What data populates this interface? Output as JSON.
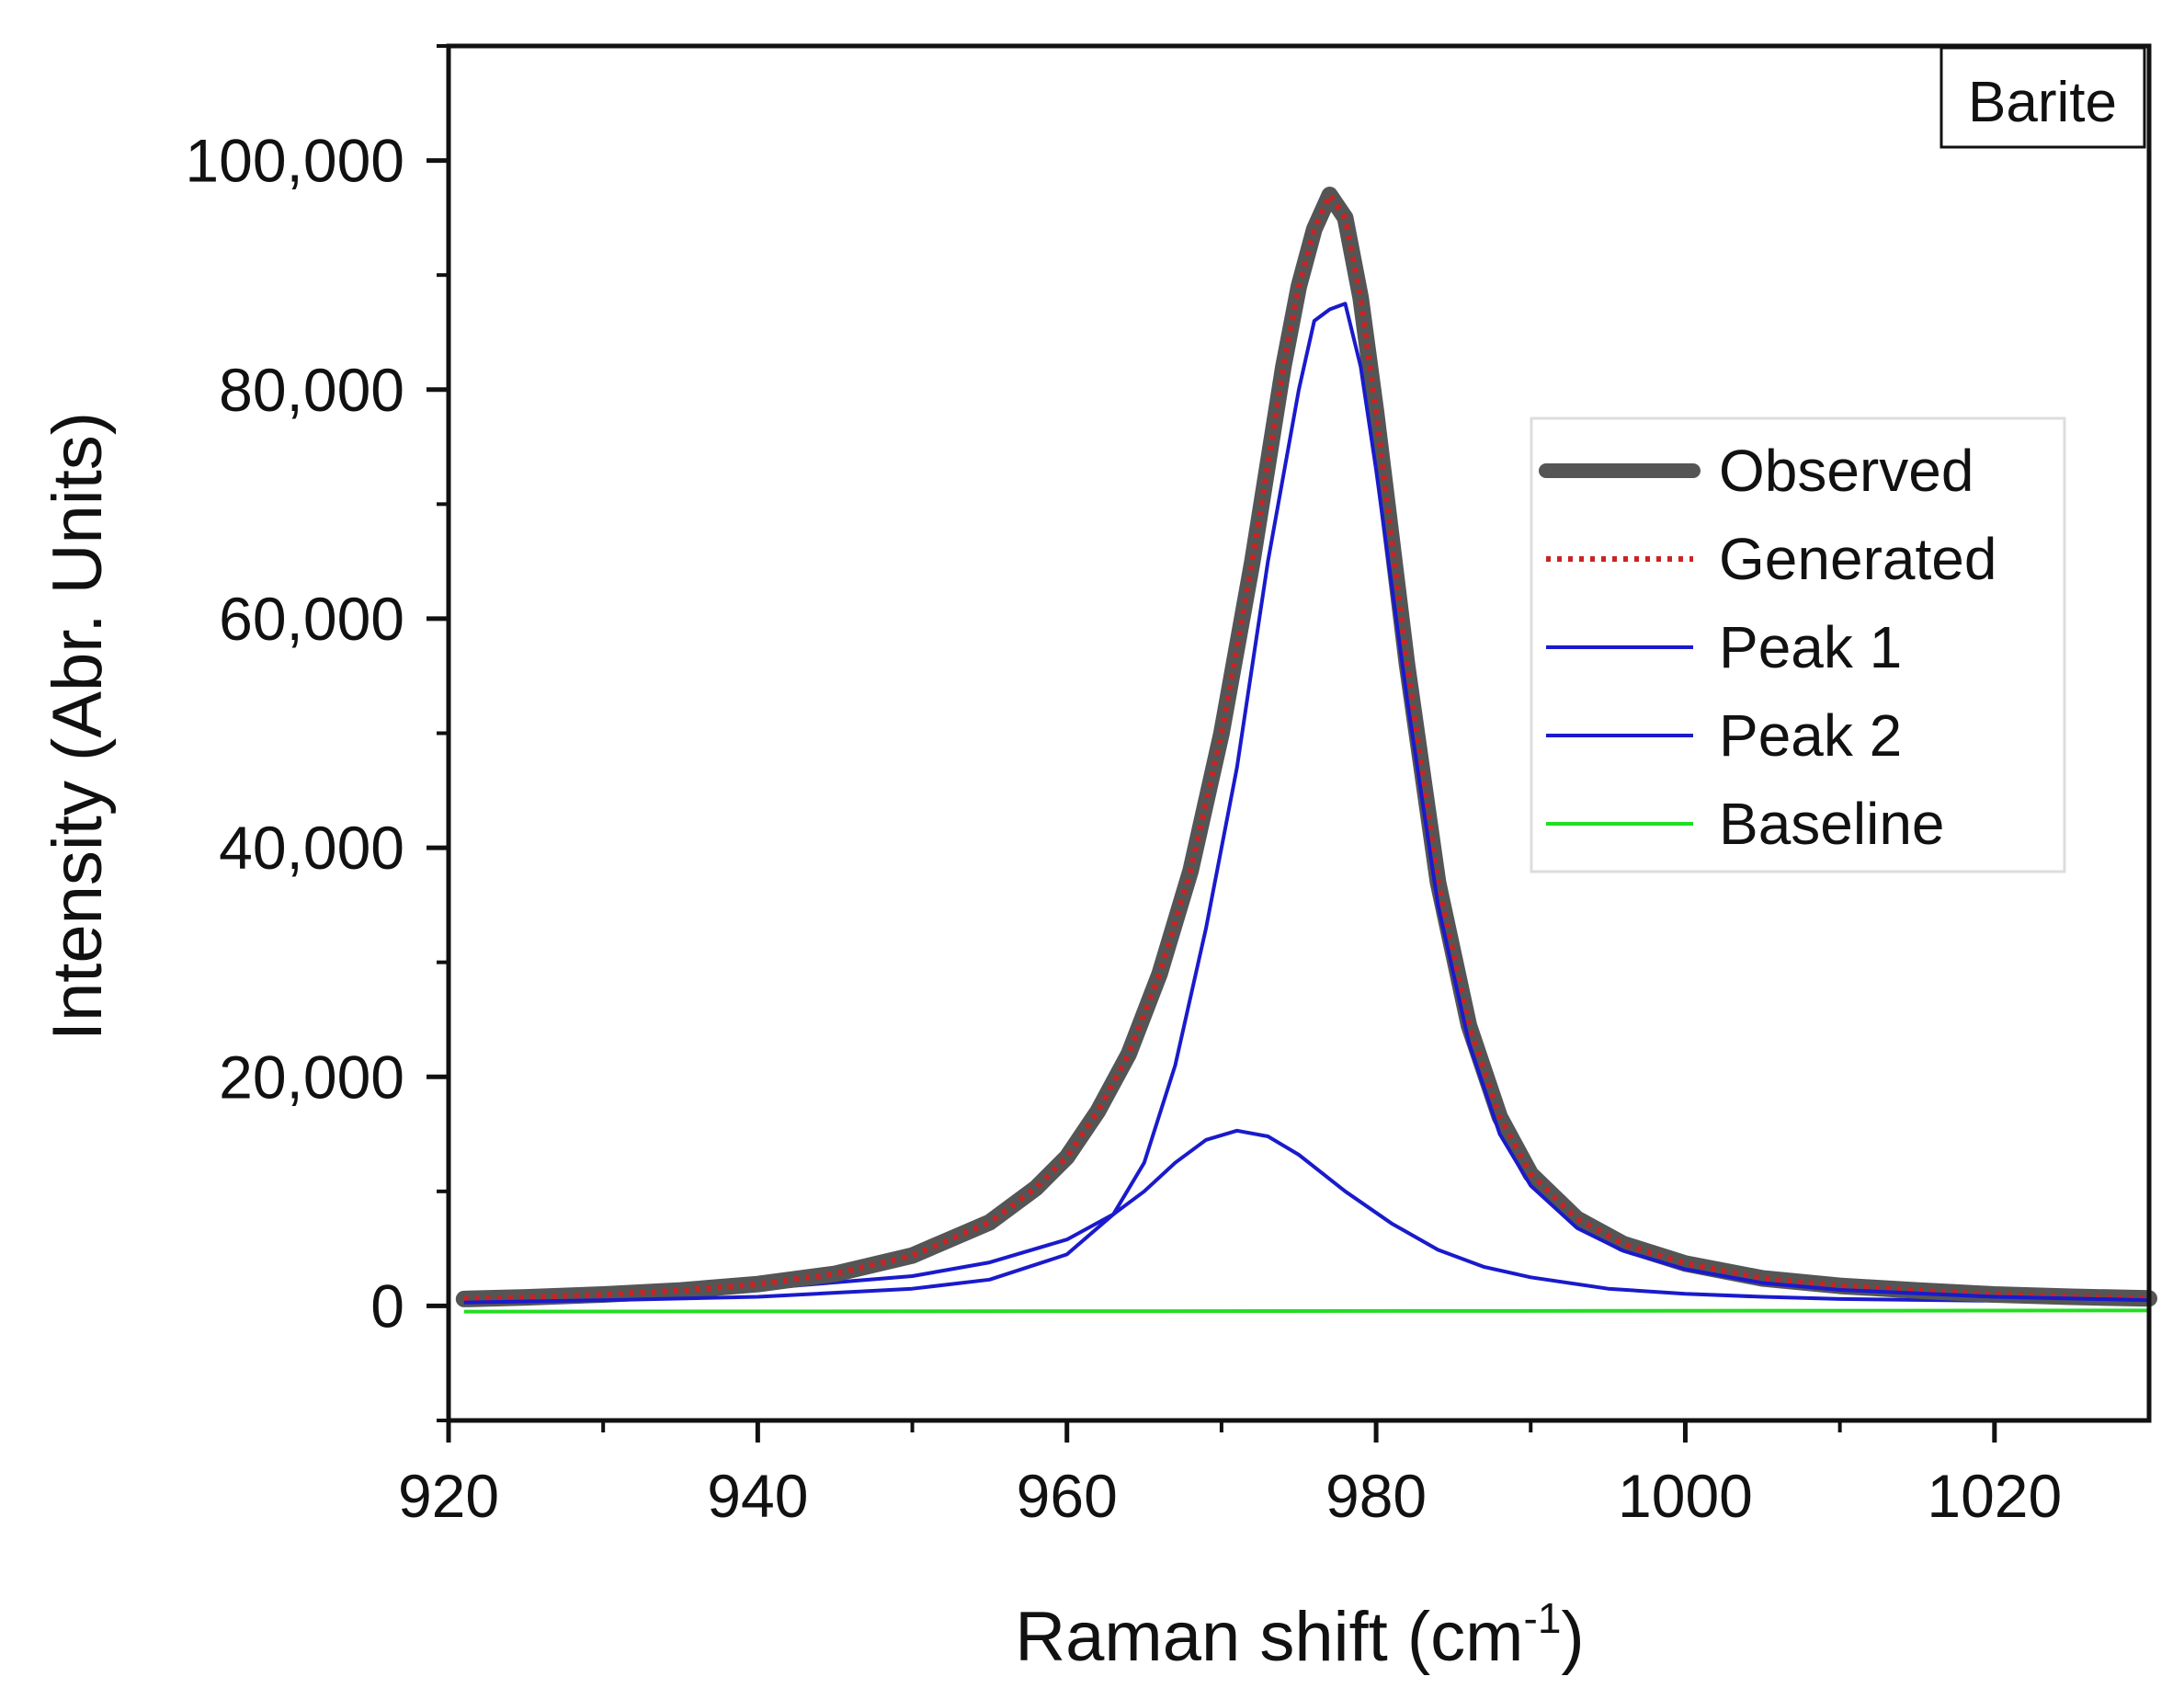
{
  "chart_data": {
    "type": "line",
    "title": "",
    "sample_label": "Barite",
    "xlabel_main": "Raman shift (cm",
    "xlabel_sup": "-1",
    "xlabel_close": ")",
    "ylabel": "Intensity (Abr. Units)",
    "xlim": [
      920,
      1030
    ],
    "ylim": [
      -10000,
      110000
    ],
    "x_ticks": [
      920,
      940,
      960,
      980,
      1000,
      1020
    ],
    "x_tick_labels": [
      "920",
      "940",
      "960",
      "980",
      "1000",
      "1020"
    ],
    "y_ticks": [
      0,
      20000,
      40000,
      60000,
      80000,
      100000
    ],
    "y_tick_labels": [
      "0",
      "20,000",
      "40,000",
      "60,000",
      "80,000",
      "100,000"
    ],
    "grid": false,
    "legend_position": "right",
    "series": [
      {
        "name": "Observed",
        "color": "#555555",
        "style": "thick",
        "x": [
          921,
          925,
          930,
          935,
          940,
          945,
          950,
          955,
          958,
          960,
          962,
          964,
          966,
          968,
          970,
          972,
          974,
          975,
          976,
          977,
          978,
          979,
          980,
          982,
          984,
          986,
          988,
          990,
          993,
          996,
          1000,
          1005,
          1010,
          1015,
          1020,
          1025,
          1030
        ],
        "y": [
          600,
          750,
          1000,
          1350,
          1900,
          2800,
          4400,
          7300,
          10300,
          13000,
          17000,
          22000,
          29000,
          38000,
          50000,
          65000,
          82000,
          89000,
          94000,
          97000,
          95000,
          88000,
          78000,
          56000,
          37000,
          24500,
          16500,
          11500,
          7600,
          5400,
          3700,
          2400,
          1750,
          1350,
          1000,
          800,
          650
        ]
      },
      {
        "name": "Generated",
        "color": "#cc2222",
        "style": "dotted",
        "x": [
          921,
          925,
          930,
          935,
          940,
          945,
          950,
          955,
          958,
          960,
          962,
          964,
          966,
          968,
          970,
          972,
          974,
          975,
          976,
          977,
          978,
          979,
          980,
          982,
          984,
          986,
          988,
          990,
          993,
          996,
          1000,
          1005,
          1010,
          1015,
          1020,
          1025,
          1030
        ],
        "y": [
          600,
          750,
          1000,
          1350,
          1900,
          2800,
          4400,
          7300,
          10300,
          13000,
          17000,
          22000,
          29000,
          38000,
          50000,
          65000,
          82000,
          89000,
          94000,
          97000,
          95000,
          88000,
          78000,
          56000,
          37000,
          24500,
          16500,
          11500,
          7600,
          5400,
          3700,
          2400,
          1750,
          1350,
          1000,
          800,
          650
        ]
      },
      {
        "name": "Peak 1",
        "color": "#1a1acc",
        "style": "solid",
        "x": [
          921,
          930,
          940,
          950,
          955,
          960,
          963,
          965,
          967,
          969,
          971,
          973,
          975,
          976,
          977,
          978,
          979,
          980,
          982,
          984,
          986,
          988,
          990,
          993,
          996,
          1000,
          1005,
          1010,
          1020,
          1030
        ],
        "y": [
          300,
          500,
          800,
          1500,
          2300,
          4500,
          8000,
          12500,
          21000,
          33000,
          47000,
          65000,
          80000,
          86000,
          87000,
          87500,
          82000,
          73000,
          53000,
          35000,
          23000,
          15000,
          10500,
          6800,
          4800,
          3200,
          2000,
          1400,
          800,
          500
        ]
      },
      {
        "name": "Peak 2",
        "color": "#1a1acc",
        "style": "solid",
        "x": [
          921,
          930,
          940,
          950,
          955,
          960,
          963,
          965,
          967,
          969,
          971,
          973,
          975,
          978,
          981,
          984,
          987,
          990,
          995,
          1000,
          1005,
          1010,
          1020,
          1030
        ],
        "y": [
          500,
          800,
          1500,
          2600,
          3800,
          5800,
          8000,
          10000,
          12500,
          14500,
          15300,
          14800,
          13200,
          10000,
          7200,
          4900,
          3400,
          2500,
          1500,
          1050,
          800,
          600,
          450,
          350
        ]
      },
      {
        "name": "Baseline",
        "color": "#22dd22",
        "style": "solid",
        "x": [
          921,
          1030
        ],
        "y": [
          -500,
          -400
        ]
      }
    ]
  }
}
